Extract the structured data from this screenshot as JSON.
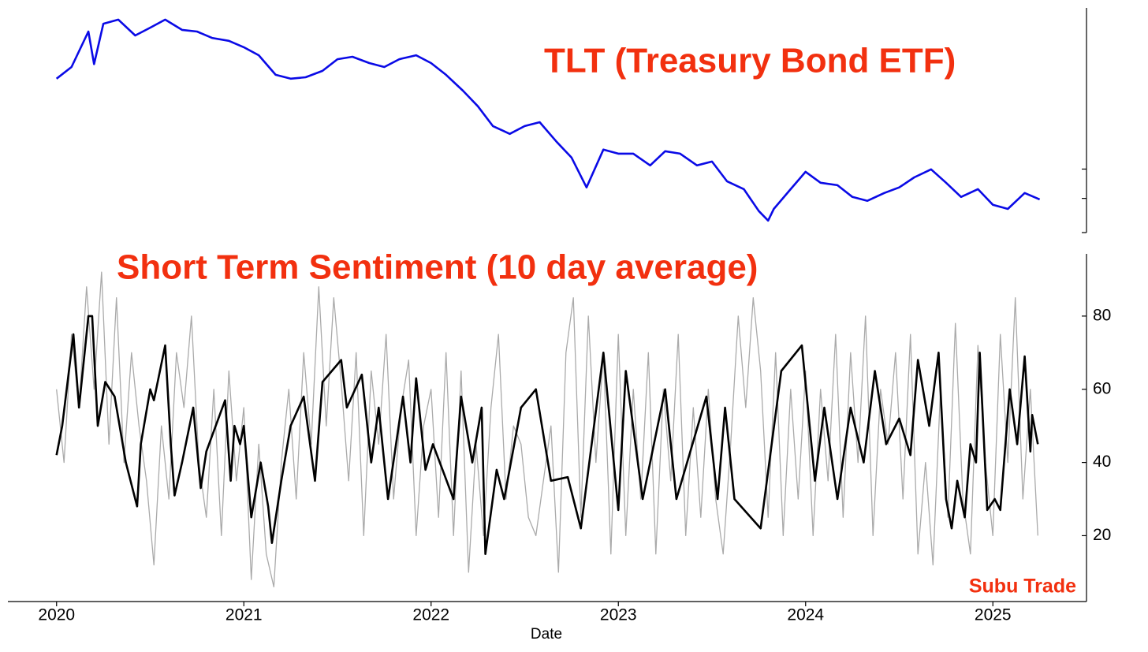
{
  "chart_data": [
    {
      "type": "line",
      "title": "TLT (Treasury Bond ETF)",
      "xlim": [
        2019.74,
        2025.5
      ],
      "ylim": [
        80,
        172
      ],
      "yticks": [
        80,
        94,
        106
      ],
      "series": [
        {
          "color": "#0a0ae6",
          "x": [
            2020.0,
            2020.08,
            2020.17,
            2020.2,
            2020.25,
            2020.33,
            2020.42,
            2020.5,
            2020.58,
            2020.67,
            2020.75,
            2020.83,
            2020.92,
            2021.0,
            2021.08,
            2021.17,
            2021.25,
            2021.33,
            2021.42,
            2021.5,
            2021.58,
            2021.67,
            2021.75,
            2021.83,
            2021.92,
            2022.0,
            2022.08,
            2022.17,
            2022.25,
            2022.33,
            2022.42,
            2022.5,
            2022.58,
            2022.67,
            2022.75,
            2022.83,
            2022.92,
            2023.0,
            2023.08,
            2023.17,
            2023.25,
            2023.33,
            2023.42,
            2023.5,
            2023.58,
            2023.67,
            2023.75,
            2023.8,
            2023.83,
            2023.92,
            2024.0,
            2024.08,
            2024.17,
            2024.25,
            2024.33,
            2024.42,
            2024.5,
            2024.58,
            2024.67,
            2024.75,
            2024.83,
            2024.92,
            2025.0,
            2025.08,
            2025.17,
            2025.25
          ],
          "values": [
            143,
            147.8,
            162.3,
            149,
            165.5,
            167.2,
            160.7,
            163.9,
            167.2,
            163,
            162.3,
            159.7,
            158.5,
            155.9,
            152.6,
            144.6,
            143,
            143.6,
            146.2,
            151,
            152,
            149.4,
            147.8,
            151,
            152.6,
            149.4,
            144.6,
            138.1,
            131.7,
            123.6,
            120.4,
            123.6,
            125.2,
            117.2,
            110.7,
            98.5,
            114,
            112.3,
            112.3,
            107.5,
            113.3,
            112.3,
            107.5,
            109.1,
            101,
            97.8,
            88.8,
            84.9,
            89.7,
            97.8,
            104.9,
            100.4,
            99.4,
            94.6,
            93,
            96.2,
            98.5,
            102.6,
            105.9,
            100.4,
            94.6,
            97.8,
            91.4,
            89.7,
            96.2,
            93.6
          ]
        }
      ]
    },
    {
      "type": "line",
      "title": "Short Term Sentiment (10 day average)",
      "xlabel": "Date",
      "attribution": "Subu Trade",
      "xlim": [
        2019.74,
        2025.5
      ],
      "xticks": [
        2020,
        2021,
        2022,
        2023,
        2024,
        2025
      ],
      "ylim": [
        2,
        97
      ],
      "yticks": [
        20,
        40,
        60,
        80
      ],
      "series": [
        {
          "color": "#aaaaaa",
          "x": [
            2020.0,
            2020.04,
            2020.08,
            2020.12,
            2020.16,
            2020.2,
            2020.24,
            2020.28,
            2020.32,
            2020.36,
            2020.4,
            2020.44,
            2020.48,
            2020.52,
            2020.56,
            2020.6,
            2020.64,
            2020.68,
            2020.72,
            2020.76,
            2020.8,
            2020.84,
            2020.88,
            2020.92,
            2020.96,
            2021.0,
            2021.04,
            2021.08,
            2021.12,
            2021.16,
            2021.2,
            2021.24,
            2021.28,
            2021.32,
            2021.36,
            2021.4,
            2021.44,
            2021.48,
            2021.52,
            2021.56,
            2021.6,
            2021.64,
            2021.68,
            2021.72,
            2021.76,
            2021.8,
            2021.84,
            2021.88,
            2021.92,
            2021.96,
            2022.0,
            2022.04,
            2022.08,
            2022.12,
            2022.16,
            2022.2,
            2022.24,
            2022.28,
            2022.32,
            2022.36,
            2022.4,
            2022.44,
            2022.48,
            2022.52,
            2022.56,
            2022.6,
            2022.64,
            2022.68,
            2022.72,
            2022.76,
            2022.8,
            2022.84,
            2022.88,
            2022.92,
            2022.96,
            2023.0,
            2023.04,
            2023.08,
            2023.12,
            2023.16,
            2023.2,
            2023.24,
            2023.28,
            2023.32,
            2023.36,
            2023.4,
            2023.44,
            2023.48,
            2023.52,
            2023.56,
            2023.6,
            2023.64,
            2023.68,
            2023.72,
            2023.76,
            2023.8,
            2023.84,
            2023.88,
            2023.92,
            2023.96,
            2024.0,
            2024.04,
            2024.08,
            2024.12,
            2024.16,
            2024.2,
            2024.24,
            2024.28,
            2024.32,
            2024.36,
            2024.4,
            2024.44,
            2024.48,
            2024.52,
            2024.56,
            2024.6,
            2024.64,
            2024.68,
            2024.72,
            2024.76,
            2024.8,
            2024.84,
            2024.88,
            2024.92,
            2024.96,
            2025.0,
            2025.04,
            2025.08,
            2025.12,
            2025.16,
            2025.2,
            2025.24
          ],
          "values": [
            60,
            40,
            75,
            55,
            88,
            60,
            92,
            45,
            85,
            40,
            70,
            50,
            35,
            12,
            50,
            30,
            70,
            55,
            80,
            40,
            25,
            60,
            20,
            65,
            35,
            55,
            8,
            45,
            15,
            6,
            40,
            60,
            30,
            70,
            45,
            88,
            50,
            85,
            62,
            35,
            70,
            20,
            65,
            45,
            75,
            30,
            55,
            68,
            20,
            50,
            60,
            25,
            70,
            20,
            65,
            10,
            45,
            20,
            55,
            75,
            30,
            50,
            45,
            25,
            20,
            35,
            50,
            10,
            70,
            85,
            25,
            80,
            40,
            70,
            15,
            75,
            20,
            60,
            30,
            70,
            15,
            60,
            35,
            75,
            20,
            55,
            25,
            60,
            30,
            15,
            45,
            80,
            55,
            85,
            65,
            25,
            70,
            20,
            60,
            30,
            65,
            20,
            60,
            35,
            75,
            25,
            70,
            40,
            80,
            20,
            60,
            45,
            70,
            30,
            75,
            15,
            40,
            12,
            60,
            25,
            78,
            30,
            15,
            72,
            40,
            20,
            75,
            40,
            85,
            30,
            60,
            20
          ]
        },
        {
          "color": "#000000",
          "x": [
            2020.0,
            2020.03,
            2020.09,
            2020.12,
            2020.17,
            2020.19,
            2020.22,
            2020.26,
            2020.31,
            2020.37,
            2020.43,
            2020.45,
            2020.5,
            2020.52,
            2020.58,
            2020.61,
            2020.63,
            2020.67,
            2020.73,
            2020.77,
            2020.8,
            2020.9,
            2020.93,
            2020.95,
            2020.98,
            2021.0,
            2021.04,
            2021.09,
            2021.13,
            2021.15,
            2021.2,
            2021.25,
            2021.32,
            2021.38,
            2021.42,
            2021.52,
            2021.55,
            2021.63,
            2021.68,
            2021.72,
            2021.77,
            2021.85,
            2021.89,
            2021.92,
            2021.97,
            2022.01,
            2022.12,
            2022.16,
            2022.22,
            2022.27,
            2022.29,
            2022.35,
            2022.39,
            2022.48,
            2022.56,
            2022.64,
            2022.73,
            2022.8,
            2022.92,
            2023.0,
            2023.04,
            2023.13,
            2023.25,
            2023.31,
            2023.47,
            2023.53,
            2023.57,
            2023.62,
            2023.76,
            2023.87,
            2023.98,
            2024.05,
            2024.1,
            2024.17,
            2024.24,
            2024.31,
            2024.37,
            2024.43,
            2024.5,
            2024.56,
            2024.6,
            2024.66,
            2024.71,
            2024.75,
            2024.78,
            2024.81,
            2024.85,
            2024.88,
            2024.91,
            2024.93,
            2024.97,
            2025.01,
            2025.04,
            2025.09,
            2025.13,
            2025.17,
            2025.2,
            2025.21,
            2025.24
          ],
          "values": [
            42,
            50,
            75,
            55,
            80,
            80,
            50,
            62,
            58,
            40,
            28,
            45,
            60,
            57,
            72,
            45,
            31,
            40,
            55,
            33,
            43,
            57,
            35,
            50,
            45,
            50,
            25,
            40,
            28,
            18,
            35,
            50,
            58,
            35,
            62,
            68,
            55,
            64,
            40,
            55,
            30,
            58,
            40,
            63,
            38,
            45,
            30,
            58,
            40,
            55,
            15,
            38,
            30,
            55,
            60,
            35,
            36,
            22,
            70,
            27,
            65,
            30,
            60,
            30,
            58,
            30,
            55,
            30,
            22,
            65,
            72,
            35,
            55,
            30,
            55,
            40,
            65,
            45,
            52,
            42,
            68,
            50,
            70,
            30,
            22,
            35,
            25,
            45,
            40,
            70,
            27,
            30,
            27,
            60,
            45,
            69,
            43,
            53,
            45
          ]
        }
      ]
    }
  ]
}
